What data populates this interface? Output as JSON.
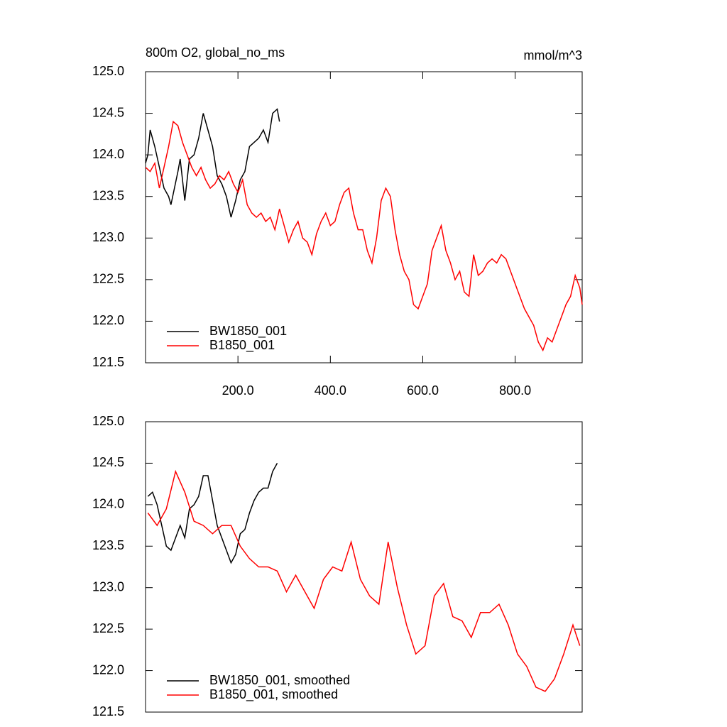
{
  "chart_data": [
    {
      "type": "line",
      "title": "800m O2, global_no_ms",
      "unit_label": "mmol/m^3",
      "legend": "lower left",
      "xlim": [
        0,
        945
      ],
      "xticks": [
        {
          "value": 200,
          "label": "200.0"
        },
        {
          "value": 400,
          "label": "400.0"
        },
        {
          "value": 600,
          "label": "600.0"
        },
        {
          "value": 800,
          "label": "800.0"
        }
      ],
      "ylim": [
        121.5,
        125.0
      ],
      "yticks": [
        {
          "value": 121.5,
          "label": "121.5"
        },
        {
          "value": 122.0,
          "label": "122.0"
        },
        {
          "value": 122.5,
          "label": "122.5"
        },
        {
          "value": 123.0,
          "label": "123.0"
        },
        {
          "value": 123.5,
          "label": "123.5"
        },
        {
          "value": 124.0,
          "label": "124.0"
        },
        {
          "value": 124.5,
          "label": "124.5"
        },
        {
          "value": 125.0,
          "label": "125.0"
        }
      ],
      "series": [
        {
          "name": "BW1850_001",
          "color": "#000000",
          "x": [
            0,
            5,
            10,
            20,
            30,
            40,
            50,
            55,
            70,
            75,
            85,
            95,
            105,
            115,
            125,
            135,
            145,
            155,
            165,
            175,
            185,
            195,
            205,
            215,
            225,
            235,
            245,
            255,
            265,
            275,
            285,
            290
          ],
          "values": [
            123.9,
            124.0,
            124.3,
            124.1,
            123.85,
            123.6,
            123.5,
            123.4,
            123.8,
            123.95,
            123.45,
            123.95,
            124.0,
            124.2,
            124.5,
            124.3,
            124.1,
            123.75,
            123.65,
            123.5,
            123.25,
            123.45,
            123.7,
            123.8,
            124.1,
            124.15,
            124.2,
            124.3,
            124.15,
            124.5,
            124.55,
            124.4
          ]
        },
        {
          "name": "B1850_001",
          "color": "#ff0000",
          "x": [
            0,
            10,
            20,
            30,
            40,
            50,
            60,
            70,
            80,
            90,
            100,
            110,
            120,
            130,
            140,
            150,
            160,
            170,
            180,
            190,
            200,
            210,
            220,
            230,
            240,
            250,
            260,
            270,
            280,
            290,
            300,
            310,
            320,
            330,
            340,
            350,
            360,
            370,
            380,
            390,
            400,
            410,
            420,
            430,
            440,
            450,
            460,
            470,
            480,
            490,
            500,
            510,
            520,
            530,
            540,
            550,
            560,
            570,
            580,
            590,
            600,
            610,
            620,
            630,
            640,
            650,
            660,
            670,
            680,
            690,
            700,
            710,
            720,
            730,
            740,
            750,
            760,
            770,
            780,
            790,
            800,
            810,
            820,
            830,
            840,
            850,
            860,
            870,
            880,
            890,
            900,
            910,
            920,
            930,
            940,
            945
          ],
          "values": [
            123.85,
            123.8,
            123.9,
            123.6,
            123.85,
            124.1,
            124.4,
            124.35,
            124.15,
            124.0,
            123.85,
            123.75,
            123.85,
            123.7,
            123.6,
            123.65,
            123.75,
            123.7,
            123.8,
            123.65,
            123.55,
            123.7,
            123.4,
            123.3,
            123.25,
            123.3,
            123.2,
            123.25,
            123.1,
            123.35,
            123.15,
            122.95,
            123.1,
            123.2,
            123.0,
            122.95,
            122.8,
            123.05,
            123.2,
            123.3,
            123.15,
            123.2,
            123.4,
            123.55,
            123.6,
            123.3,
            123.1,
            123.1,
            122.85,
            122.7,
            123.0,
            123.45,
            123.6,
            123.5,
            123.1,
            122.8,
            122.6,
            122.5,
            122.2,
            122.15,
            122.3,
            122.45,
            122.85,
            123.0,
            123.15,
            122.85,
            122.7,
            122.5,
            122.6,
            122.35,
            122.3,
            122.8,
            122.55,
            122.6,
            122.7,
            122.75,
            122.7,
            122.8,
            122.75,
            122.6,
            122.45,
            122.3,
            122.15,
            122.05,
            121.95,
            121.75,
            121.65,
            121.8,
            121.75,
            121.9,
            122.05,
            122.2,
            122.3,
            122.55,
            122.4,
            122.2
          ]
        }
      ]
    },
    {
      "type": "line",
      "legend": "lower left",
      "xlim": [
        0,
        945
      ],
      "ylim": [
        121.5,
        125.0
      ],
      "yticks": [
        {
          "value": 121.5,
          "label": "121.5"
        },
        {
          "value": 122.0,
          "label": "122.0"
        },
        {
          "value": 122.5,
          "label": "122.5"
        },
        {
          "value": 123.0,
          "label": "123.0"
        },
        {
          "value": 123.5,
          "label": "123.5"
        },
        {
          "value": 124.0,
          "label": "124.0"
        },
        {
          "value": 124.5,
          "label": "124.5"
        },
        {
          "value": 125.0,
          "label": "125.0"
        }
      ],
      "series": [
        {
          "name": "BW1850_001, smoothed",
          "color": "#000000",
          "x": [
            5,
            15,
            25,
            35,
            45,
            55,
            65,
            75,
            85,
            95,
            105,
            115,
            125,
            135,
            145,
            155,
            165,
            175,
            185,
            195,
            205,
            215,
            225,
            235,
            245,
            255,
            265,
            275,
            285
          ],
          "values": [
            124.1,
            124.15,
            124.0,
            123.75,
            123.5,
            123.45,
            123.6,
            123.75,
            123.6,
            123.95,
            124.0,
            124.1,
            124.35,
            124.35,
            124.05,
            123.75,
            123.6,
            123.45,
            123.3,
            123.4,
            123.65,
            123.7,
            123.9,
            124.05,
            124.15,
            124.2,
            124.2,
            124.4,
            124.5
          ]
        },
        {
          "name": "B1850_001, smoothed",
          "color": "#ff0000",
          "x": [
            5,
            25,
            45,
            65,
            85,
            105,
            125,
            145,
            165,
            185,
            205,
            225,
            245,
            265,
            285,
            305,
            325,
            345,
            365,
            385,
            405,
            425,
            445,
            465,
            485,
            505,
            525,
            545,
            565,
            585,
            605,
            625,
            645,
            665,
            685,
            705,
            725,
            745,
            765,
            785,
            805,
            825,
            845,
            865,
            885,
            905,
            925,
            940
          ],
          "values": [
            123.9,
            123.75,
            123.95,
            124.4,
            124.15,
            123.8,
            123.75,
            123.65,
            123.75,
            123.75,
            123.5,
            123.35,
            123.25,
            123.25,
            123.2,
            122.95,
            123.15,
            122.95,
            122.75,
            123.1,
            123.25,
            123.2,
            123.55,
            123.1,
            122.9,
            122.8,
            123.55,
            123.0,
            122.55,
            122.2,
            122.3,
            122.9,
            123.05,
            122.65,
            122.6,
            122.4,
            122.7,
            122.7,
            122.8,
            122.55,
            122.2,
            122.05,
            121.8,
            121.75,
            121.9,
            122.2,
            122.55,
            122.3
          ]
        }
      ]
    }
  ]
}
